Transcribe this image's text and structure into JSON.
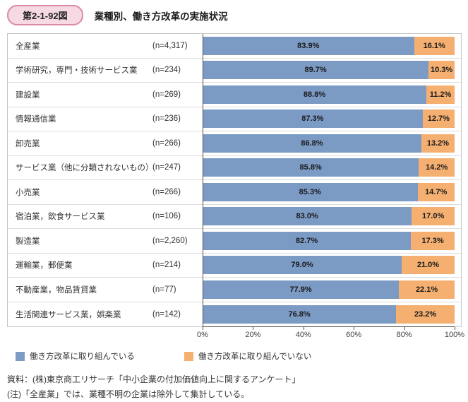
{
  "header": {
    "badge": "第2-1-92図",
    "title": "業種別、働き方改革の実施状況"
  },
  "legend": {
    "items": [
      {
        "label": "働き方改革に取り組んでいる"
      },
      {
        "label": "働き方改革に取り組んでいない"
      }
    ]
  },
  "footer": {
    "source": "資料：(株)東京商工リサーチ「中小企業の付加価値向上に関するアンケート」",
    "note": "(注)「全産業」では、業種不明の企業は除外して集計している。"
  },
  "chart_data": {
    "type": "bar",
    "orientation": "horizontal",
    "stacked": true,
    "title": "業種別、働き方改革の実施状況",
    "categories": [
      "全産業",
      "学術研究，専門・技術サービス業",
      "建設業",
      "情報通信業",
      "卸売業",
      "サービス業（他に分類されないもの）",
      "小売業",
      "宿泊業，飲食サービス業",
      "製造業",
      "運輸業，郵便業",
      "不動産業，物品賃貸業",
      "生活関連サービス業，娯楽業"
    ],
    "n_labels": [
      "(n=4,317)",
      "(n=234)",
      "(n=269)",
      "(n=236)",
      "(n=266)",
      "(n=247)",
      "(n=266)",
      "(n=106)",
      "(n=2,260)",
      "(n=214)",
      "(n=77)",
      "(n=142)"
    ],
    "series": [
      {
        "name": "働き方改革に取り組んでいる",
        "color": "#7b9ac4",
        "values": [
          83.9,
          89.7,
          88.8,
          87.3,
          86.8,
          85.8,
          85.3,
          83.0,
          82.7,
          79.0,
          77.9,
          76.8
        ]
      },
      {
        "name": "働き方改革に取り組んでいない",
        "color": "#f5b071",
        "values": [
          16.1,
          10.3,
          11.2,
          12.7,
          13.2,
          14.2,
          14.7,
          17.0,
          17.3,
          21.0,
          22.1,
          23.2
        ]
      }
    ],
    "x_ticks": [
      "0%",
      "20%",
      "40%",
      "60%",
      "80%",
      "100%"
    ],
    "xlim": [
      0,
      100
    ],
    "value_suffix": "%"
  }
}
